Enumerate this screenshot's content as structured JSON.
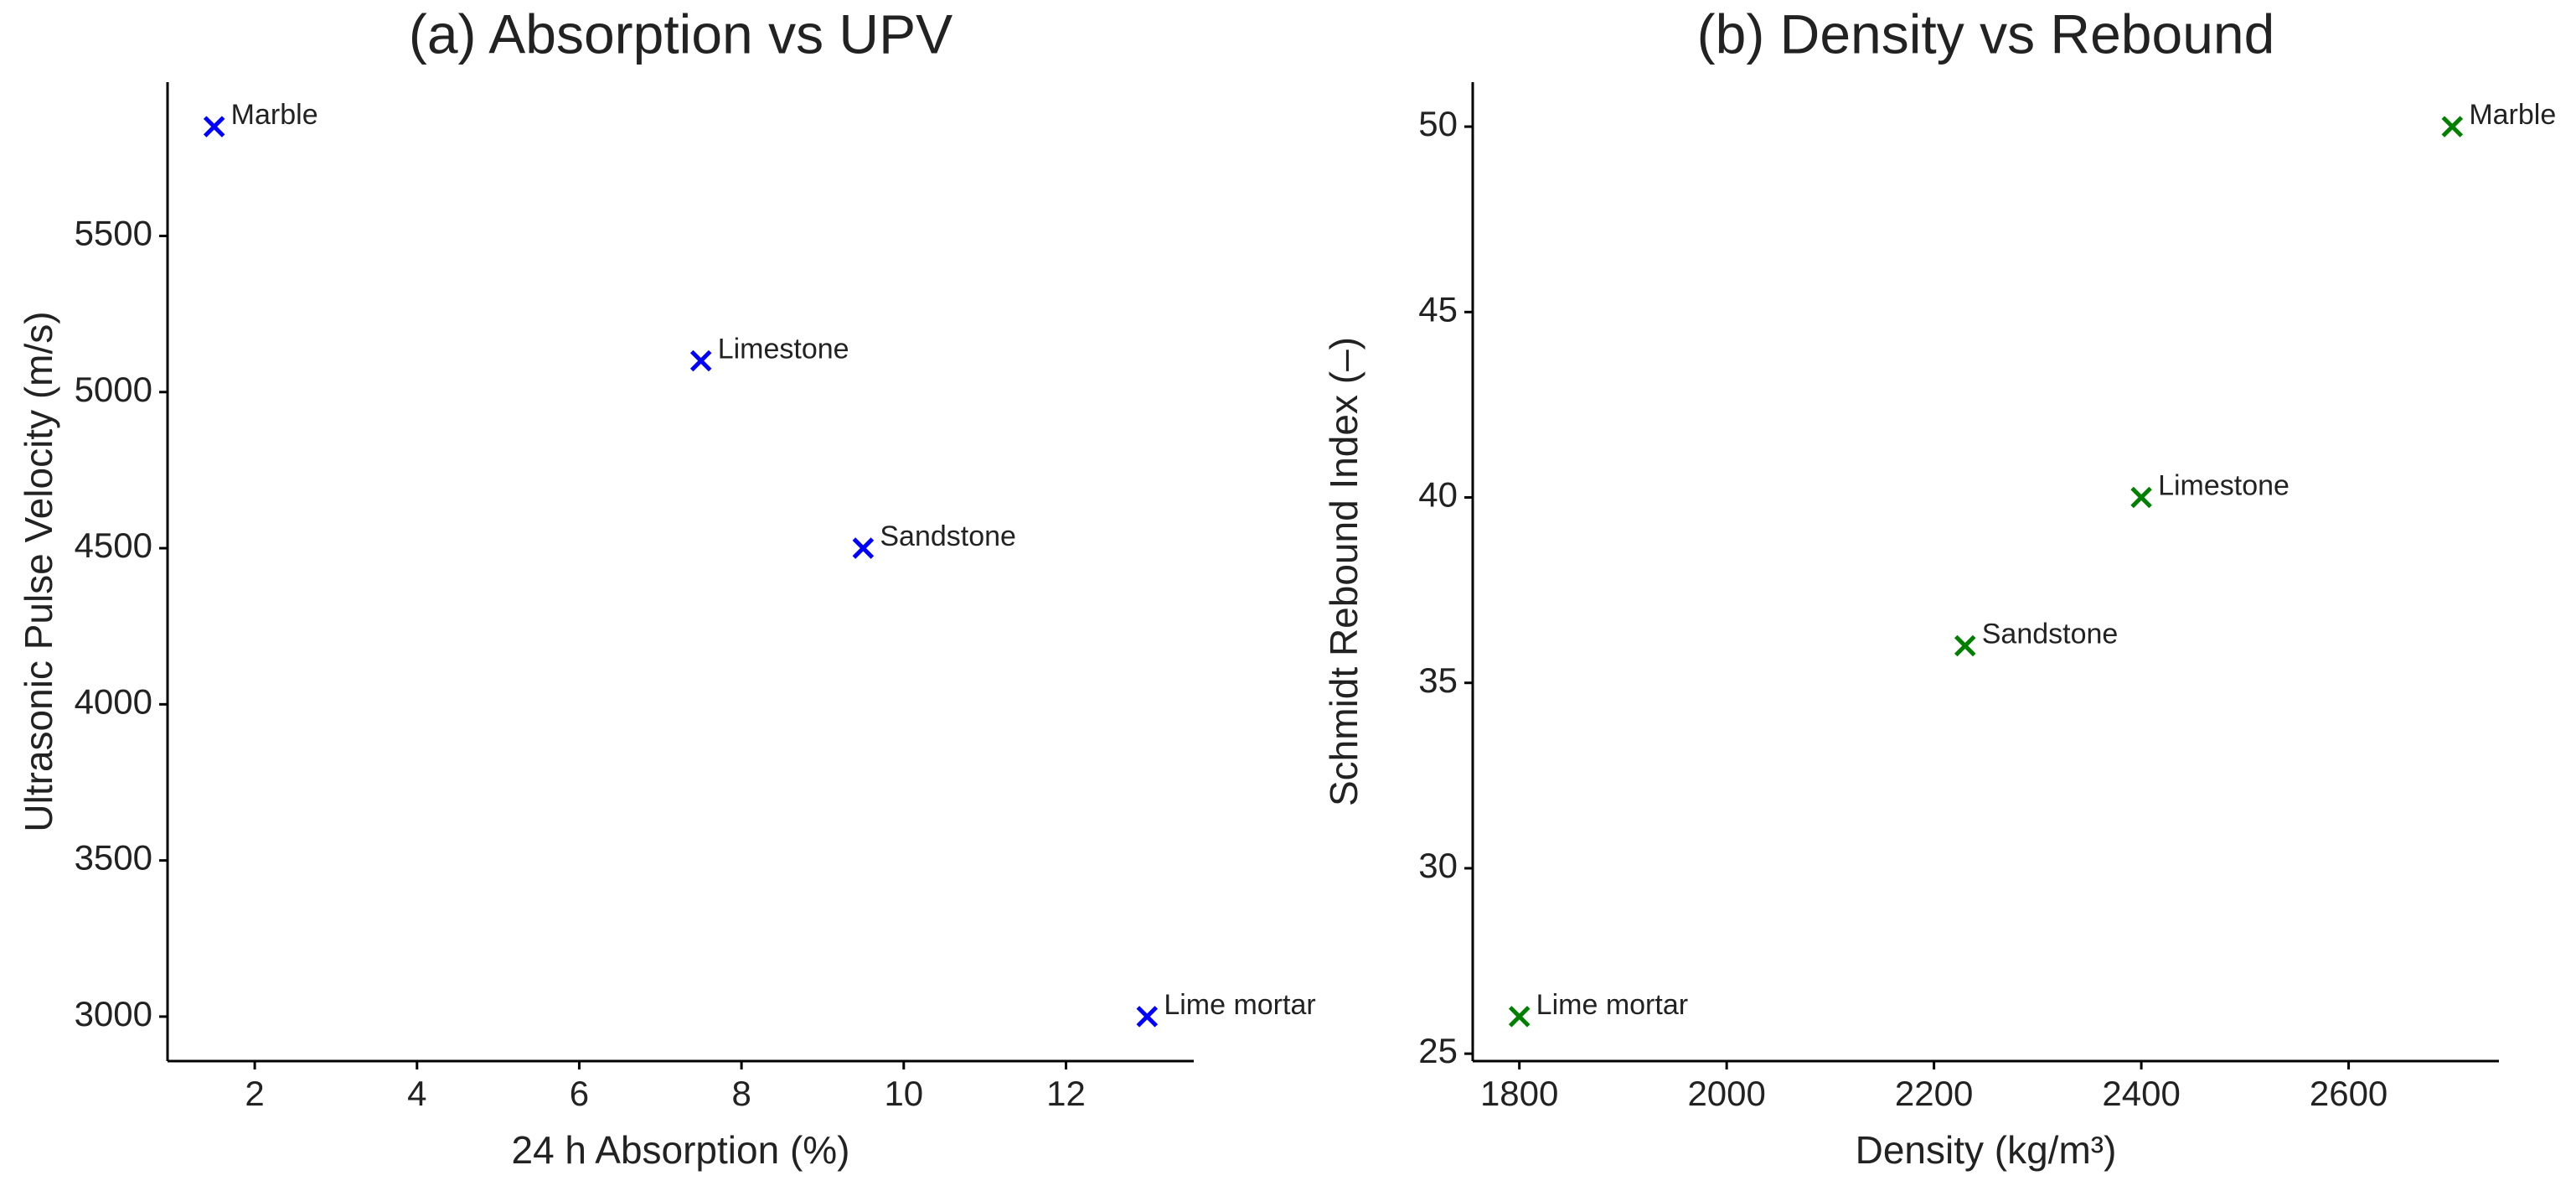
{
  "chart_data": [
    {
      "type": "scatter",
      "title": "(a) Absorption vs UPV",
      "xlabel": "24 h Absorption (%)",
      "ylabel": "Ultrasonic Pulse Velocity (m/s)",
      "labels": [
        "Marble",
        "Limestone",
        "Sandstone",
        "Lime mortar"
      ],
      "x": [
        1.5,
        7.5,
        9.5,
        13
      ],
      "values": [
        5850,
        5100,
        4500,
        3000
      ],
      "color": "#0000ff",
      "marker": "x",
      "xlim": [
        0.925,
        13.575
      ],
      "ylim": [
        2857.5,
        5992.5
      ],
      "xticks": [
        2,
        4,
        6,
        8,
        10,
        12
      ],
      "yticks": [
        3000,
        3500,
        4000,
        4500,
        5000,
        5500
      ],
      "grid": false
    },
    {
      "type": "scatter",
      "title": "(b) Density vs Rebound",
      "xlabel": "Density (kg/m³)",
      "ylabel": "Schmidt Rebound Index (–)",
      "labels": [
        "Marble",
        "Limestone",
        "Sandstone",
        "Lime mortar"
      ],
      "x": [
        2700,
        2400,
        2230,
        1800
      ],
      "values": [
        50,
        40,
        36,
        26
      ],
      "color": "#008000",
      "marker": "x",
      "xlim": [
        1755,
        2745
      ],
      "ylim": [
        24.8,
        51.2
      ],
      "xticks": [
        1800,
        2000,
        2200,
        2400,
        2600
      ],
      "yticks": [
        25,
        30,
        35,
        40,
        45,
        50
      ],
      "grid": false
    }
  ]
}
